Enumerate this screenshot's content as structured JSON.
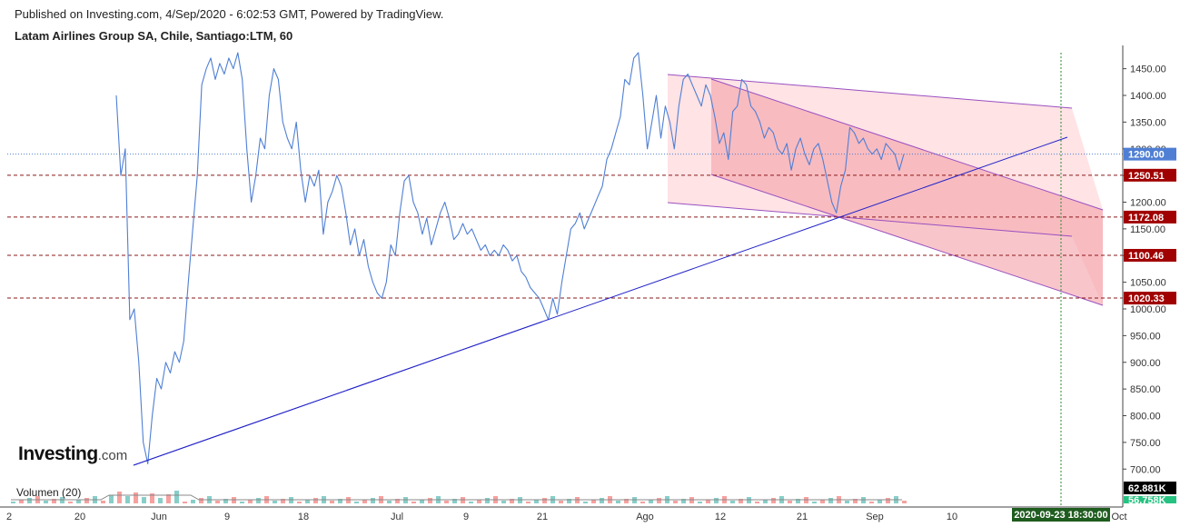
{
  "header": {
    "published": "Published on Investing.com, 4/Sep/2020 - 6:02:53 GMT, Powered by TradingView.",
    "instrument": "Latam Airlines Group SA, Chile, Santiago:LTM, 60"
  },
  "logo": {
    "word": "Investing",
    "domain": ".com"
  },
  "volume": {
    "label": "Volumen (20)",
    "value_tag": "62.881K",
    "ma_tag": "56.758K",
    "tag_colors": {
      "volume": "#000000",
      "ma": "#26c281"
    }
  },
  "colors": {
    "price_line": "#4f7fd4",
    "trend_line": "#2424c8",
    "channel_line": "#9a4fc0",
    "channel_light": "#ffd9dc",
    "channel_dark": "#f3a0a6",
    "level_line": "#8b1a1a",
    "level_tag": "#a00000",
    "last_price_tag": "#4f7fd4",
    "date_tag": "#1f5c1f",
    "vertical_marker": "#2e8b2e"
  },
  "chart_data": {
    "type": "line",
    "ylim": [
      680,
      1480
    ],
    "y_ticks": [
      700,
      750,
      800,
      850,
      900,
      950,
      1000,
      1050,
      1100,
      1150,
      1200,
      1250,
      1300,
      1350,
      1400,
      1450
    ],
    "x_tick_labels": [
      "2",
      "20",
      "Jun",
      "9",
      "18",
      "Jul",
      "9",
      "21",
      "Ago",
      "12",
      "21",
      "Sep",
      "10",
      "Oct"
    ],
    "horizontal_levels": [
      1250.51,
      1172.08,
      1100.46,
      1020.33
    ],
    "last_price": 1290.0,
    "date_tag": "2020-09-23 18:30:00",
    "series": [
      {
        "values": [
          1400,
          1250,
          1300,
          980,
          1000,
          900,
          750,
          710,
          800,
          870,
          850,
          900,
          880,
          920,
          900,
          940,
          1050,
          1150,
          1250,
          1420,
          1450,
          1470,
          1430,
          1460,
          1440,
          1470,
          1450,
          1480,
          1430,
          1300,
          1200,
          1250,
          1320,
          1300,
          1400,
          1450,
          1430,
          1350,
          1320,
          1300,
          1350,
          1260,
          1200,
          1250,
          1230,
          1260,
          1140,
          1200,
          1220,
          1250,
          1230,
          1180,
          1120,
          1150,
          1100,
          1130,
          1080,
          1050,
          1030,
          1020,
          1050,
          1120,
          1100,
          1180,
          1240,
          1250,
          1200,
          1180,
          1140,
          1170,
          1120,
          1150,
          1180,
          1200,
          1170,
          1130,
          1140,
          1160,
          1140,
          1150,
          1130,
          1110,
          1120,
          1100,
          1110,
          1100,
          1120,
          1110,
          1090,
          1100,
          1070,
          1060,
          1040,
          1030,
          1020,
          1000,
          980,
          1020,
          990,
          1050,
          1100,
          1150,
          1160,
          1180,
          1150,
          1170,
          1190,
          1210,
          1230,
          1280,
          1300,
          1330,
          1360,
          1430,
          1420,
          1470,
          1480,
          1400,
          1300,
          1350,
          1400,
          1320,
          1380,
          1350,
          1300,
          1380,
          1430,
          1440,
          1420,
          1400,
          1380,
          1420,
          1400,
          1360,
          1310,
          1330,
          1280,
          1370,
          1380,
          1430,
          1420,
          1380,
          1370,
          1350,
          1320,
          1340,
          1330,
          1300,
          1290,
          1310,
          1260,
          1300,
          1320,
          1290,
          1270,
          1300,
          1310,
          1280,
          1240,
          1200,
          1180,
          1230,
          1260,
          1340,
          1330,
          1310,
          1320,
          1300,
          1290,
          1300,
          1280,
          1310,
          1300,
          1290,
          1260,
          1290
        ]
      }
    ]
  }
}
